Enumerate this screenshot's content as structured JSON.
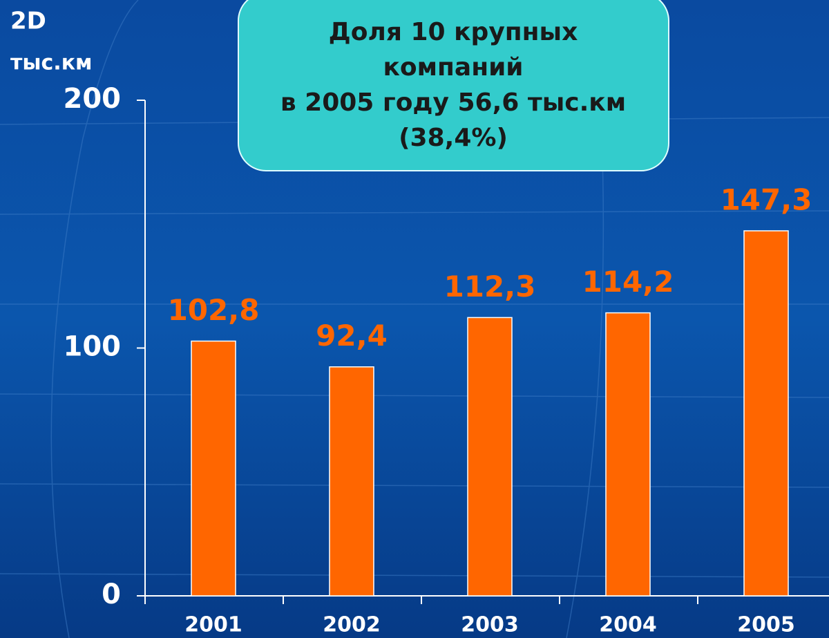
{
  "chart_data": {
    "type": "bar",
    "ylabel": [
      "2D",
      "тыс.км"
    ],
    "annotation": [
      "Доля 10 крупных",
      "компаний",
      "в 2005 году 56,6 тыс.км",
      "(38,4%)"
    ],
    "categories": [
      "2001",
      "2002",
      "2003",
      "2004",
      "2005"
    ],
    "values": [
      102.8,
      92.4,
      112.3,
      114.2,
      147.3
    ],
    "value_labels": [
      "102,8",
      "92,4",
      "112,3",
      "114,2",
      "147,3"
    ],
    "color": "#ff6600",
    "ylim": [
      0,
      200
    ],
    "yticks": [
      0,
      100,
      200
    ],
    "grid": false
  }
}
